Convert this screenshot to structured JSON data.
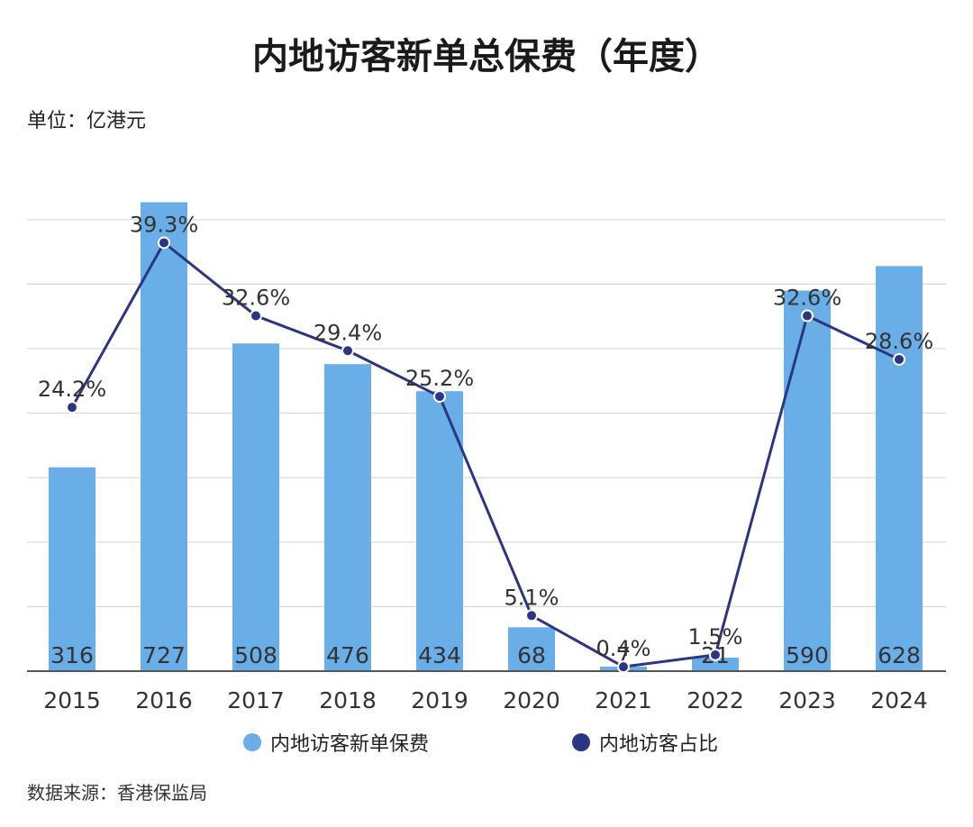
{
  "header": {
    "title": "内地访客新单总保费（年度）",
    "unit": "单位：亿港元"
  },
  "footer": {
    "source": "数据来源：香港保监局"
  },
  "colors": {
    "bar": "#6aaee8",
    "line": "#2c3585",
    "grid": "#d9d9d9",
    "axis": "#555555"
  },
  "chart_data": {
    "type": "bar",
    "categories": [
      "2015",
      "2016",
      "2017",
      "2018",
      "2019",
      "2020",
      "2021",
      "2022",
      "2023",
      "2024"
    ],
    "series": [
      {
        "name": "内地访客新单保费",
        "type": "bar",
        "values": [
          316,
          727,
          508,
          476,
          434,
          68,
          7,
          21,
          590,
          628
        ],
        "labels": [
          "316",
          "727",
          "508",
          "476",
          "434",
          "68",
          "7",
          "21",
          "590",
          "628"
        ]
      },
      {
        "name": "内地访客占比",
        "type": "line",
        "values": [
          24.2,
          39.3,
          32.6,
          29.4,
          25.2,
          5.1,
          0.4,
          1.5,
          32.6,
          28.6
        ],
        "labels": [
          "24.2%",
          "39.3%",
          "32.6%",
          "29.4%",
          "25.2%",
          "5.1%",
          "0.4%",
          "1.5%",
          "32.6%",
          "28.6%"
        ]
      }
    ],
    "ylim_bar": [
      0,
      700
    ],
    "ylim_line": [
      0,
      50
    ],
    "grid": true,
    "legend": "bottom"
  }
}
